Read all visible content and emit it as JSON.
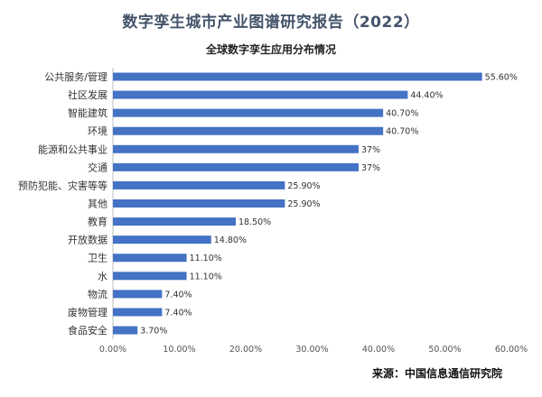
{
  "chart_data": {
    "type": "bar",
    "orientation": "horizontal",
    "title": "数字孪生城市产业图谱研究报告（2022）",
    "subtitle": "全球数字孪生应用分布情况",
    "source": "来源：中国信息通信研究院",
    "categories": [
      "公共服务/管理",
      "社区发展",
      "智能建筑",
      "环境",
      "能源和公共事业",
      "交通",
      "预防犯能、灾害等等",
      "其他",
      "教育",
      "开放数据",
      "卫生",
      "水",
      "物流",
      "废物管理",
      "食品安全"
    ],
    "values": [
      55.6,
      44.4,
      40.7,
      40.7,
      37,
      37,
      25.9,
      25.9,
      18.5,
      14.8,
      11.1,
      11.1,
      7.4,
      7.4,
      3.7
    ],
    "value_labels": [
      "55.60%",
      "44.40%",
      "40.70%",
      "40.70%",
      "37%",
      "37%",
      "25.90%",
      "25.90%",
      "18.50%",
      "14.80%",
      "11.10%",
      "11.10%",
      "7.40%",
      "7.40%",
      "3.70%"
    ],
    "x_ticks": [
      "0.00%",
      "10.00%",
      "20.00%",
      "30.00%",
      "40.00%",
      "50.00%",
      "60.00%"
    ],
    "xlim": [
      0,
      60
    ],
    "bar_color": "#4472c4",
    "grid": false
  }
}
